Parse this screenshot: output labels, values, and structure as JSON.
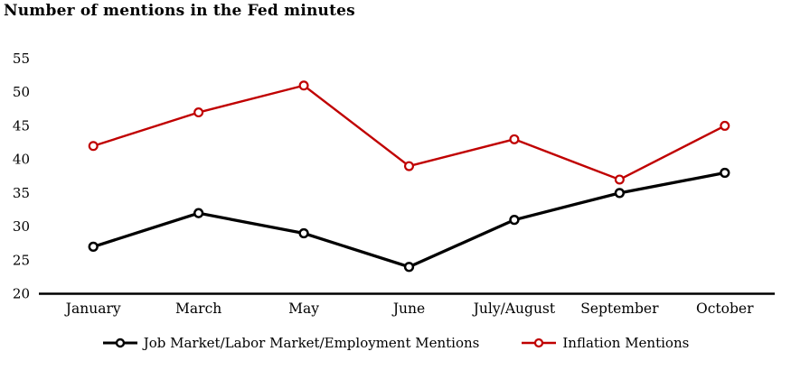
{
  "chart_data": {
    "type": "line",
    "title": "Number of mentions in the Fed minutes",
    "categories": [
      "January",
      "March",
      "May",
      "June",
      "July/August",
      "September",
      "October"
    ],
    "series": [
      {
        "key": "job-market",
        "name": "Job Market/Labor Market/Employment Mentions",
        "color": "#000000",
        "values": [
          27,
          32,
          29,
          24,
          31,
          35,
          38
        ]
      },
      {
        "key": "inflation",
        "name": "Inflation Mentions",
        "color": "#c00000",
        "values": [
          42,
          47,
          51,
          39,
          43,
          37,
          45
        ]
      }
    ],
    "xlabel": "",
    "ylabel": "",
    "ylim": [
      20,
      55
    ],
    "yticks": [
      20,
      25,
      30,
      35,
      40,
      45,
      50,
      55
    ],
    "grid": false,
    "legend_position": "bottom",
    "marker": "open-circle",
    "axis_color": "#000000",
    "background": "#ffffff"
  }
}
